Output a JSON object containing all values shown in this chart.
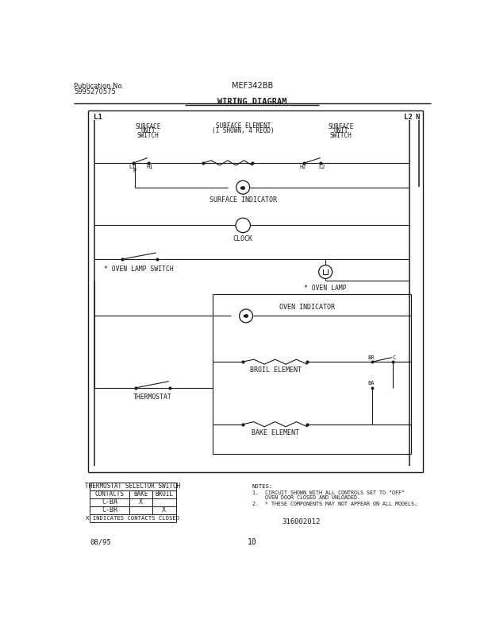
{
  "title_pub": "Publication No.",
  "pub_num": "5995270575",
  "model": "MEF342BB",
  "diagram_title": "WIRING DIAGRAM",
  "footer_left": "08/95",
  "footer_center": "10",
  "part_num": "316002012",
  "notes_title": "NOTES:",
  "note1a": "1.  CIRCUIT SHOWN WITH ALL CONTROLS SET TO \"OFF\"",
  "note1b": "    OVEN DOOR CLOSED AND UNLOADED.",
  "note2": "2.  * THESE COMPONENTS MAY NOT APPEAR ON ALL MODELS.",
  "table_title": "THERMOSTAT SELECTOR SWITCH",
  "table_headers": [
    "CONTACTS",
    "BAKE",
    "BROIL"
  ],
  "table_rows": [
    [
      "C-BA",
      "X",
      ""
    ],
    [
      "C-BR",
      "",
      "X"
    ]
  ],
  "table_footer": "X INDICATES CONTACTS CLOSED",
  "bg_color": "#ffffff",
  "line_color": "#1a1a1a"
}
